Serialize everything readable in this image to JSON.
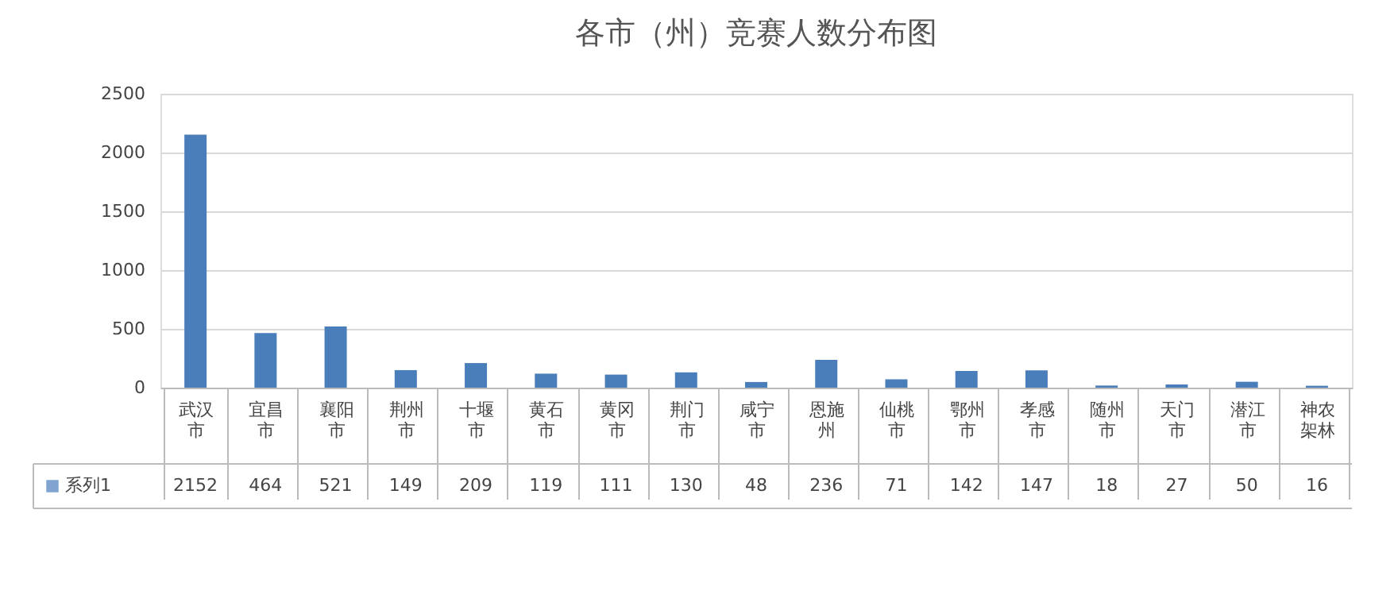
{
  "chart_data": {
    "type": "bar",
    "title": "各市（州）竞赛人数分布图",
    "categories": [
      "武汉市",
      "宜昌市",
      "襄阳市",
      "荆州市",
      "十堰市",
      "黄石市",
      "黄冈市",
      "荆门市",
      "咸宁市",
      "恩施州",
      "仙桃市",
      "鄂州市",
      "孝感市",
      "随州市",
      "天门市",
      "潜江市",
      "神农架林"
    ],
    "series": [
      {
        "name": "系列1",
        "color": "#4a7ebb",
        "values": [
          2152,
          464,
          521,
          149,
          209,
          119,
          111,
          130,
          48,
          236,
          71,
          142,
          147,
          18,
          27,
          50,
          16
        ]
      }
    ],
    "ylim": [
      0,
      2500
    ],
    "yticks": [
      0,
      500,
      1000,
      1500,
      2000,
      2500
    ],
    "grid": "y",
    "legend": "bottom",
    "data_labels": true
  }
}
